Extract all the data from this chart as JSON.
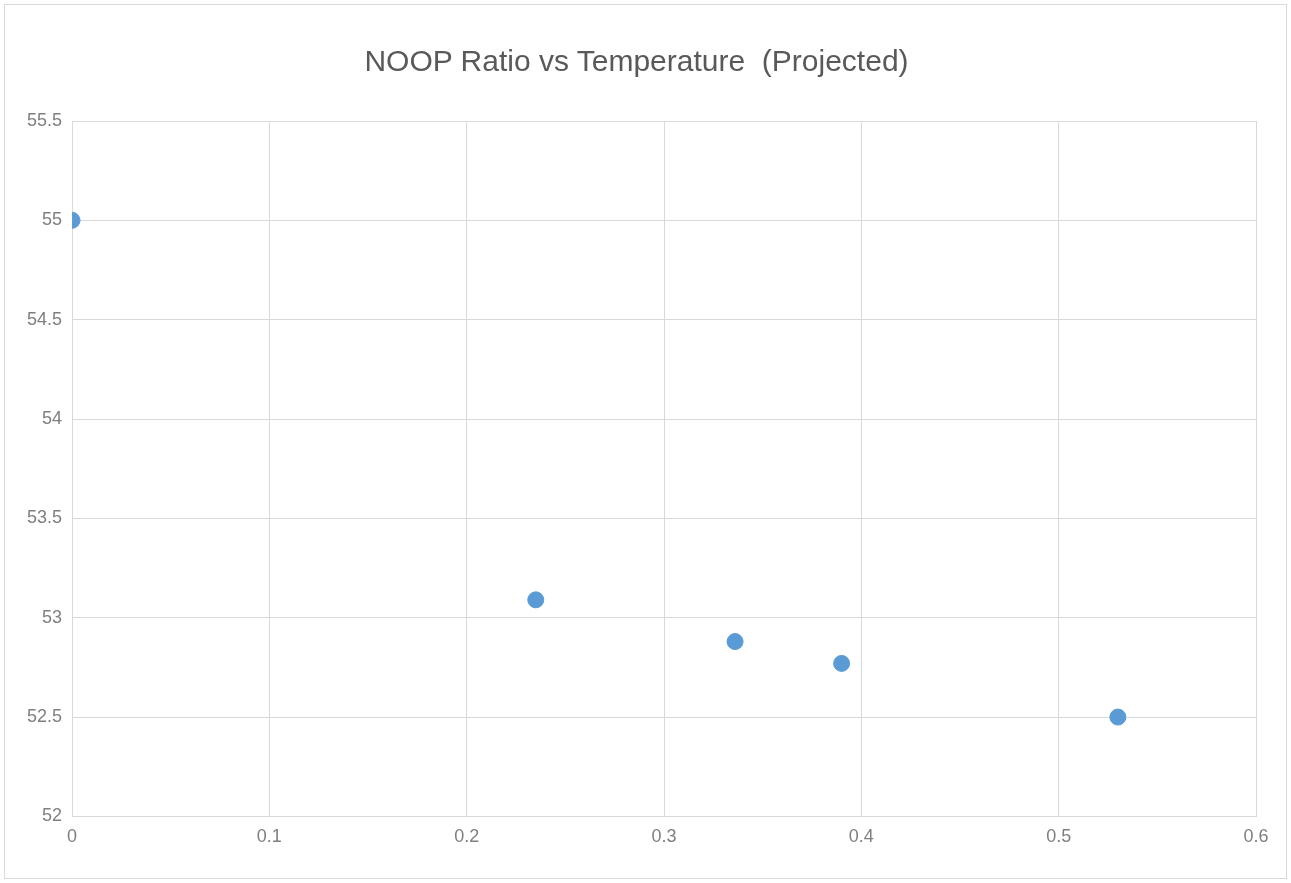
{
  "chart_data": {
    "type": "scatter",
    "title": "NOOP Ratio vs Temperature  (Projected)",
    "x": [
      0,
      0.235,
      0.336,
      0.39,
      0.53
    ],
    "values": [
      55,
      53.09,
      52.88,
      52.77,
      52.5
    ],
    "color": "#5b9bd5",
    "marker": "circle",
    "xlim": [
      0,
      0.6
    ],
    "xticks": [
      0,
      0.1,
      0.2,
      0.3,
      0.4,
      0.5,
      0.6
    ],
    "ylim": [
      52,
      55.5
    ],
    "yticks": [
      52,
      52.5,
      53,
      53.5,
      54,
      54.5,
      55,
      55.5
    ],
    "grid": true,
    "legend": false
  }
}
